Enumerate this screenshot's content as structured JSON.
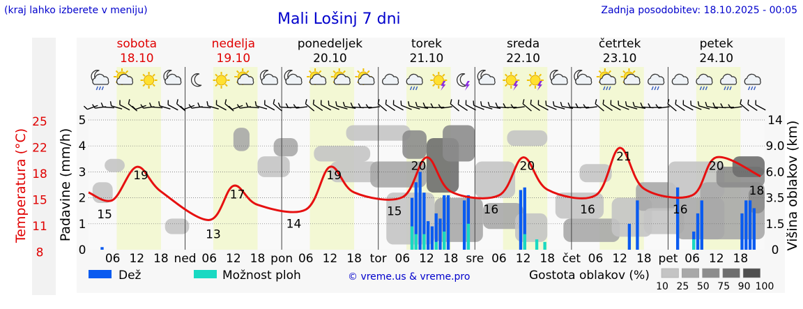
{
  "header": {
    "left_note": "(kraj lahko izberete v meniju)",
    "title": "Mali Lošinj 7 dni",
    "updated": "Zadnja posodobitev: 18.10.2025 - 00:05"
  },
  "chart_data": {
    "type": "meteogram",
    "days": [
      {
        "name": "sobota",
        "date": "18.10",
        "weekend": true
      },
      {
        "name": "nedelja",
        "date": "19.10",
        "weekend": true
      },
      {
        "name": "ponedeljek",
        "date": "20.10",
        "weekend": false
      },
      {
        "name": "torek",
        "date": "21.10",
        "weekend": false
      },
      {
        "name": "sreda",
        "date": "22.10",
        "weekend": false
      },
      {
        "name": "četrtek",
        "date": "23.10",
        "weekend": false
      },
      {
        "name": "petek",
        "date": "24.10",
        "weekend": false
      }
    ],
    "x_day_abbr": [
      "ned",
      "pon",
      "tor",
      "sre",
      "čet",
      "pet"
    ],
    "x_hours": [
      "06",
      "12",
      "18"
    ],
    "y_left_temperature": {
      "label": "Temperatura (°C)",
      "ticks": [
        25,
        22,
        18,
        15,
        11,
        8
      ],
      "color": "#e00000"
    },
    "y_left_precip": {
      "label": "Padavine (mm/h)",
      "ticks": [
        5,
        4,
        3,
        2,
        1,
        0
      ],
      "range": [
        0,
        5
      ]
    },
    "y_right_cloud": {
      "label": "Višina oblakov (km)",
      "ticks": [
        "14",
        "9.0",
        "6.0",
        "3.5",
        "1.5",
        "0"
      ]
    },
    "temperature_hourly": [
      {
        "hour": 0,
        "t": 16.3
      },
      {
        "hour": 6,
        "t": 15.5
      },
      {
        "hour": 12,
        "t": 19.0
      },
      {
        "hour": 18,
        "t": 16.4
      },
      {
        "hour": 30,
        "t": 13.4
      },
      {
        "hour": 36,
        "t": 17.0
      },
      {
        "hour": 42,
        "t": 15.0
      },
      {
        "hour": 54,
        "t": 14.5
      },
      {
        "hour": 60,
        "t": 19.0
      },
      {
        "hour": 66,
        "t": 16.3
      },
      {
        "hour": 78,
        "t": 15.8
      },
      {
        "hour": 84,
        "t": 20.0
      },
      {
        "hour": 90,
        "t": 16.4
      },
      {
        "hour": 102,
        "t": 16.0
      },
      {
        "hour": 108,
        "t": 20.0
      },
      {
        "hour": 114,
        "t": 16.6
      },
      {
        "hour": 126,
        "t": 16.0
      },
      {
        "hour": 132,
        "t": 21.0
      },
      {
        "hour": 138,
        "t": 16.7
      },
      {
        "hour": 150,
        "t": 16.0
      },
      {
        "hour": 156,
        "t": 20.0
      },
      {
        "hour": 167,
        "t": 18.0
      }
    ],
    "temperature_labels": [
      {
        "hour": 4,
        "text": "15"
      },
      {
        "hour": 13,
        "text": "19"
      },
      {
        "hour": 31,
        "text": "13"
      },
      {
        "hour": 37,
        "text": "17"
      },
      {
        "hour": 51,
        "text": "14"
      },
      {
        "hour": 61,
        "text": "19"
      },
      {
        "hour": 76,
        "text": "15"
      },
      {
        "hour": 82,
        "text": "20"
      },
      {
        "hour": 100,
        "text": "16"
      },
      {
        "hour": 109,
        "text": "20"
      },
      {
        "hour": 124,
        "text": "16"
      },
      {
        "hour": 133,
        "text": "21"
      },
      {
        "hour": 147,
        "text": "16"
      },
      {
        "hour": 156,
        "text": "20"
      },
      {
        "hour": 166,
        "text": "18"
      }
    ],
    "rain_bars": [
      {
        "hour": 3,
        "mm": 0.1
      },
      {
        "hour": 80,
        "mm": 2.0
      },
      {
        "hour": 81,
        "mm": 2.6
      },
      {
        "hour": 82,
        "mm": 3.0
      },
      {
        "hour": 83,
        "mm": 2.2
      },
      {
        "hour": 84,
        "mm": 1.1
      },
      {
        "hour": 85,
        "mm": 0.9
      },
      {
        "hour": 86,
        "mm": 1.4
      },
      {
        "hour": 87,
        "mm": 1.2
      },
      {
        "hour": 88,
        "mm": 2.1
      },
      {
        "hour": 89,
        "mm": 2.1
      },
      {
        "hour": 93,
        "mm": 1.9
      },
      {
        "hour": 94,
        "mm": 2.1
      },
      {
        "hour": 107,
        "mm": 2.3
      },
      {
        "hour": 108,
        "mm": 2.4
      },
      {
        "hour": 134,
        "mm": 1.0
      },
      {
        "hour": 136,
        "mm": 1.9
      },
      {
        "hour": 146,
        "mm": 2.4
      },
      {
        "hour": 150,
        "mm": 0.7
      },
      {
        "hour": 151,
        "mm": 1.4
      },
      {
        "hour": 152,
        "mm": 1.9
      },
      {
        "hour": 162,
        "mm": 1.4
      },
      {
        "hour": 163,
        "mm": 1.9
      },
      {
        "hour": 164,
        "mm": 1.9
      },
      {
        "hour": 165,
        "mm": 1.6
      }
    ],
    "shower_bars": [
      {
        "hour": 80,
        "mm": 0.9
      },
      {
        "hour": 81,
        "mm": 0.6
      },
      {
        "hour": 83,
        "mm": 0.6
      },
      {
        "hour": 86,
        "mm": 0.3
      },
      {
        "hour": 88,
        "mm": 0.7
      },
      {
        "hour": 94,
        "mm": 1.0
      },
      {
        "hour": 108,
        "mm": 0.6
      },
      {
        "hour": 111,
        "mm": 0.4
      },
      {
        "hour": 113,
        "mm": 0.3
      },
      {
        "hour": 150,
        "mm": 0.4
      }
    ],
    "cloud_patches": [
      {
        "h0": 1,
        "h1": 6,
        "p0": 1.8,
        "p1": 2.6,
        "d": 25
      },
      {
        "h0": 4,
        "h1": 9,
        "p0": 3.0,
        "p1": 3.5,
        "d": 25
      },
      {
        "h0": 19,
        "h1": 25,
        "p0": 0.6,
        "p1": 1.2,
        "d": 25
      },
      {
        "h0": 36,
        "h1": 40,
        "p0": 3.8,
        "p1": 4.7,
        "d": 50
      },
      {
        "h0": 46,
        "h1": 52,
        "p0": 3.6,
        "p1": 4.3,
        "d": 50
      },
      {
        "h0": 42,
        "h1": 50,
        "p0": 2.8,
        "p1": 3.6,
        "d": 25
      },
      {
        "h0": 56,
        "h1": 70,
        "p0": 3.4,
        "p1": 4.0,
        "d": 25
      },
      {
        "h0": 60,
        "h1": 72,
        "p0": 2.6,
        "p1": 3.4,
        "d": 25
      },
      {
        "h0": 64,
        "h1": 80,
        "p0": 4.2,
        "p1": 4.8,
        "d": 25
      },
      {
        "h0": 70,
        "h1": 84,
        "p0": 2.4,
        "p1": 3.4,
        "d": 50
      },
      {
        "h0": 74,
        "h1": 86,
        "p0": 0.2,
        "p1": 2.2,
        "d": 25
      },
      {
        "h0": 78,
        "h1": 84,
        "p0": 3.5,
        "p1": 4.6,
        "d": 75
      },
      {
        "h0": 84,
        "h1": 92,
        "p0": 2.2,
        "p1": 4.3,
        "d": 90
      },
      {
        "h0": 88,
        "h1": 96,
        "p0": 3.4,
        "p1": 4.8,
        "d": 75
      },
      {
        "h0": 86,
        "h1": 98,
        "p0": 0.3,
        "p1": 2.0,
        "d": 50
      },
      {
        "h0": 96,
        "h1": 106,
        "p0": 2.0,
        "p1": 3.4,
        "d": 25
      },
      {
        "h0": 98,
        "h1": 108,
        "p0": 0.8,
        "p1": 1.8,
        "d": 50
      },
      {
        "h0": 104,
        "h1": 114,
        "p0": 4.0,
        "p1": 4.6,
        "d": 25
      },
      {
        "h0": 106,
        "h1": 114,
        "p0": 0.3,
        "p1": 1.4,
        "d": 25
      },
      {
        "h0": 116,
        "h1": 128,
        "p0": 1.2,
        "p1": 2.2,
        "d": 25
      },
      {
        "h0": 118,
        "h1": 132,
        "p0": 0.3,
        "p1": 1.2,
        "d": 50
      },
      {
        "h0": 122,
        "h1": 130,
        "p0": 2.6,
        "p1": 3.3,
        "d": 25
      },
      {
        "h0": 130,
        "h1": 140,
        "p0": 0.5,
        "p1": 2.0,
        "d": 25
      },
      {
        "h0": 136,
        "h1": 146,
        "p0": 1.5,
        "p1": 2.6,
        "d": 50
      },
      {
        "h0": 138,
        "h1": 148,
        "p0": 0.6,
        "p1": 1.6,
        "d": 25
      },
      {
        "h0": 144,
        "h1": 158,
        "p0": 2.0,
        "p1": 3.4,
        "d": 25
      },
      {
        "h0": 146,
        "h1": 158,
        "p0": 0.4,
        "p1": 2.0,
        "d": 50
      },
      {
        "h0": 152,
        "h1": 168,
        "p0": 0.4,
        "p1": 2.6,
        "d": 50
      },
      {
        "h0": 156,
        "h1": 168,
        "p0": 2.4,
        "p1": 3.2,
        "d": 75
      },
      {
        "h0": 160,
        "h1": 168,
        "p0": 2.8,
        "p1": 3.6,
        "d": 90
      },
      {
        "h0": 164,
        "h1": 168,
        "p0": 1.4,
        "p1": 2.4,
        "d": 75
      }
    ],
    "weather_icons": [
      "moon-cloud-rain",
      "sun-cloud",
      "sun",
      "cloud-moon",
      "moon",
      "sun",
      "sun-cloud",
      "cloud-moon",
      "cloud-moon",
      "cloud-sun",
      "cloud-sun",
      "cloud-sun",
      "cloud",
      "cloud-rain",
      "sun-thunder",
      "moon-thunder",
      "cloud-moon",
      "sun-thunder",
      "sun-thunder",
      "cloud-moon",
      "cloud-moon",
      "sun-cloud-rain",
      "sun-cloud",
      "cloud-rain",
      "cloud",
      "cloud-rain",
      "cloud-rain",
      "cloud-rain"
    ],
    "legend": {
      "rain": "Dež",
      "showers": "Možnost ploh",
      "copyright": "© vreme.us & vreme.pro",
      "density_title": "Gostota oblakov (%)",
      "density_steps": [
        "10",
        "25",
        "50",
        "75",
        "90",
        "100"
      ],
      "density_colors": [
        "#d8d8d8",
        "#c4c4c4",
        "#a8a8a8",
        "#8c8c8c",
        "#6e6e6e",
        "#505050"
      ]
    },
    "colors": {
      "temperature": "#e61010",
      "rain": "#0a5bf0",
      "showers": "#19d9c2",
      "day_band": "#f3f8d4",
      "title_text": "#0000cc",
      "weekend_text": "#e00000"
    }
  }
}
